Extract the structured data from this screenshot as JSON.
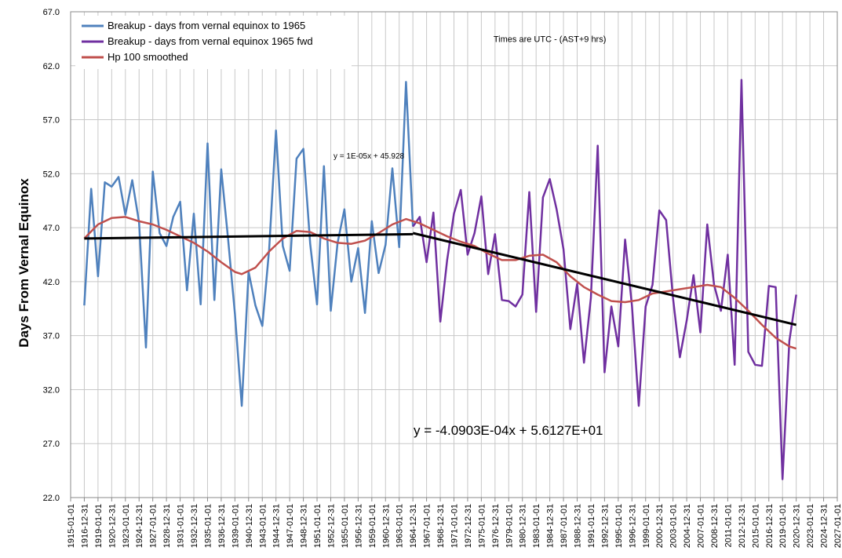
{
  "chart_data": {
    "type": "line",
    "y_label": "Days From Vernal Equinox",
    "annotations": [
      {
        "text": "Times are UTC - (AST+9 hrs)",
        "x": 1985,
        "y": 64.2
      }
    ],
    "ylim": [
      22,
      67
    ],
    "yticks": [
      {
        "value": 22,
        "label": "22.0"
      },
      {
        "value": 27,
        "label": "27.0"
      },
      {
        "value": 32,
        "label": "32.0"
      },
      {
        "value": 37,
        "label": "37.0"
      },
      {
        "value": 42,
        "label": "42.0"
      },
      {
        "value": 47,
        "label": "47.0"
      },
      {
        "value": 52,
        "label": "52.0"
      },
      {
        "value": 57,
        "label": "57.0"
      },
      {
        "value": 62,
        "label": "62.0"
      },
      {
        "value": 67,
        "label": "67.0"
      }
    ],
    "xlim": [
      1915,
      2027
    ],
    "xticks": [
      {
        "value": 1915,
        "label": "1915-01-01"
      },
      {
        "value": 1917,
        "label": "1916-12-31"
      },
      {
        "value": 1919,
        "label": "1919-01-01"
      },
      {
        "value": 1921,
        "label": "1920-12-31"
      },
      {
        "value": 1923,
        "label": "1923-01-01"
      },
      {
        "value": 1925,
        "label": "1924-12-31"
      },
      {
        "value": 1927,
        "label": "1927-01-01"
      },
      {
        "value": 1929,
        "label": "1928-12-31"
      },
      {
        "value": 1931,
        "label": "1931-01-01"
      },
      {
        "value": 1933,
        "label": "1932-12-31"
      },
      {
        "value": 1935,
        "label": "1935-01-01"
      },
      {
        "value": 1937,
        "label": "1936-12-31"
      },
      {
        "value": 1939,
        "label": "1939-01-01"
      },
      {
        "value": 1941,
        "label": "1940-12-31"
      },
      {
        "value": 1943,
        "label": "1943-01-01"
      },
      {
        "value": 1945,
        "label": "1944-12-31"
      },
      {
        "value": 1947,
        "label": "1947-01-01"
      },
      {
        "value": 1949,
        "label": "1948-12-31"
      },
      {
        "value": 1951,
        "label": "1951-01-01"
      },
      {
        "value": 1953,
        "label": "1952-12-31"
      },
      {
        "value": 1955,
        "label": "1955-01-01"
      },
      {
        "value": 1957,
        "label": "1956-12-31"
      },
      {
        "value": 1959,
        "label": "1959-01-01"
      },
      {
        "value": 1961,
        "label": "1960-12-31"
      },
      {
        "value": 1963,
        "label": "1963-01-01"
      },
      {
        "value": 1965,
        "label": "1964-12-31"
      },
      {
        "value": 1967,
        "label": "1967-01-01"
      },
      {
        "value": 1969,
        "label": "1968-12-31"
      },
      {
        "value": 1971,
        "label": "1971-01-01"
      },
      {
        "value": 1973,
        "label": "1972-12-31"
      },
      {
        "value": 1975,
        "label": "1975-01-01"
      },
      {
        "value": 1977,
        "label": "1976-12-31"
      },
      {
        "value": 1979,
        "label": "1979-01-01"
      },
      {
        "value": 1981,
        "label": "1980-12-31"
      },
      {
        "value": 1983,
        "label": "1983-01-01"
      },
      {
        "value": 1985,
        "label": "1984-12-31"
      },
      {
        "value": 1987,
        "label": "1987-01-01"
      },
      {
        "value": 1989,
        "label": "1988-12-31"
      },
      {
        "value": 1991,
        "label": "1991-01-01"
      },
      {
        "value": 1993,
        "label": "1992-12-31"
      },
      {
        "value": 1995,
        "label": "1995-01-01"
      },
      {
        "value": 1997,
        "label": "1996-12-31"
      },
      {
        "value": 1999,
        "label": "1999-01-01"
      },
      {
        "value": 2001,
        "label": "2000-12-31"
      },
      {
        "value": 2003,
        "label": "2003-01-01"
      },
      {
        "value": 2005,
        "label": "2004-12-31"
      },
      {
        "value": 2007,
        "label": "2007-01-01"
      },
      {
        "value": 2009,
        "label": "2008-12-31"
      },
      {
        "value": 2011,
        "label": "2011-01-01"
      },
      {
        "value": 2013,
        "label": "2012-12-31"
      },
      {
        "value": 2015,
        "label": "2015-01-01"
      },
      {
        "value": 2017,
        "label": "2016-12-31"
      },
      {
        "value": 2019,
        "label": "2019-01-01"
      },
      {
        "value": 2021,
        "label": "2020-12-31"
      },
      {
        "value": 2023,
        "label": "2023-01-01"
      },
      {
        "value": 2025,
        "label": "2024-12-31"
      },
      {
        "value": 2027,
        "label": "2027-01-01"
      }
    ],
    "grid": true,
    "legend": "top-left",
    "series": [
      {
        "name": "Breakup - days from vernal equinox to 1965",
        "color": "#4f81bd",
        "x": [
          1917,
          1918,
          1919,
          1920,
          1921,
          1922,
          1923,
          1924,
          1925,
          1926,
          1927,
          1928,
          1929,
          1930,
          1931,
          1932,
          1933,
          1934,
          1935,
          1936,
          1937,
          1938,
          1939,
          1940,
          1941,
          1942,
          1943,
          1944,
          1945,
          1946,
          1947,
          1948,
          1949,
          1950,
          1951,
          1952,
          1953,
          1954,
          1955,
          1956,
          1957,
          1958,
          1959,
          1960,
          1961,
          1962,
          1963,
          1964,
          1965
        ],
        "values": [
          39.8,
          50.6,
          42.5,
          51.2,
          50.8,
          51.7,
          48.2,
          51.4,
          47.5,
          35.9,
          52.2,
          46.5,
          45.3,
          48.0,
          49.4,
          41.2,
          48.3,
          39.9,
          54.8,
          40.3,
          52.4,
          46.0,
          39.0,
          30.5,
          42.9,
          39.8,
          37.9,
          45.0,
          56.0,
          45.3,
          43.0,
          53.4,
          54.3,
          45.5,
          39.9,
          52.7,
          39.3,
          45.6,
          48.7,
          42.0,
          45.1,
          39.1,
          47.6,
          42.8,
          45.4,
          52.5,
          45.2,
          60.5,
          47.1
        ]
      },
      {
        "name": "Breakup - days from vernal equinox 1965 fwd",
        "color": "#7030a0",
        "x": [
          1965,
          1966,
          1967,
          1968,
          1969,
          1970,
          1971,
          1972,
          1973,
          1974,
          1975,
          1976,
          1977,
          1978,
          1979,
          1980,
          1981,
          1982,
          1983,
          1984,
          1985,
          1986,
          1987,
          1988,
          1989,
          1990,
          1991,
          1992,
          1993,
          1994,
          1995,
          1996,
          1997,
          1998,
          1999,
          2000,
          2001,
          2002,
          2003,
          2004,
          2005,
          2006,
          2007,
          2008,
          2009,
          2010,
          2011,
          2012,
          2013,
          2014,
          2015,
          2016,
          2017,
          2018,
          2019,
          2020,
          2021
        ],
        "values": [
          47.1,
          48.0,
          43.8,
          48.4,
          38.3,
          44.0,
          48.3,
          50.5,
          44.5,
          46.5,
          49.9,
          42.7,
          46.4,
          40.3,
          40.2,
          39.7,
          40.8,
          50.3,
          39.2,
          49.8,
          51.5,
          48.7,
          45.0,
          37.6,
          41.8,
          34.5,
          40.5,
          54.6,
          33.6,
          39.7,
          36.0,
          45.9,
          39.8,
          30.5,
          39.7,
          41.7,
          48.6,
          47.7,
          40.5,
          35.0,
          38.4,
          42.6,
          37.3,
          47.3,
          41.7,
          39.3,
          44.5,
          34.3,
          60.7,
          35.5,
          34.3,
          34.2,
          41.6,
          41.5,
          23.7,
          36.5,
          40.8
        ]
      },
      {
        "name": "Hp 100 smoothed",
        "color": "#c0504d",
        "x": [
          1917,
          1919,
          1921,
          1923,
          1925,
          1927,
          1929,
          1931,
          1933,
          1935,
          1937,
          1939,
          1940,
          1942,
          1944,
          1946,
          1948,
          1950,
          1952,
          1954,
          1956,
          1958,
          1960,
          1962,
          1964,
          1966,
          1968,
          1970,
          1972,
          1974,
          1976,
          1978,
          1980,
          1982,
          1984,
          1986,
          1988,
          1990,
          1992,
          1994,
          1996,
          1998,
          2000,
          2002,
          2004,
          2006,
          2008,
          2010,
          2012,
          2014,
          2016,
          2018,
          2020,
          2021
        ],
        "values": [
          46.0,
          47.3,
          47.9,
          48.0,
          47.6,
          47.3,
          46.8,
          46.2,
          45.6,
          44.8,
          43.8,
          42.9,
          42.7,
          43.3,
          44.8,
          46.0,
          46.7,
          46.6,
          46.0,
          45.6,
          45.5,
          45.8,
          46.5,
          47.3,
          47.8,
          47.4,
          46.8,
          46.2,
          45.7,
          45.3,
          44.6,
          44.0,
          44.0,
          44.4,
          44.5,
          43.8,
          42.5,
          41.5,
          40.8,
          40.2,
          40.1,
          40.3,
          40.9,
          41.1,
          41.3,
          41.5,
          41.7,
          41.5,
          40.5,
          39.3,
          38.0,
          36.8,
          36.0,
          35.8
        ]
      }
    ],
    "trendlines": [
      {
        "label": "y = 1E-05x + 45.928",
        "color": "#000000",
        "x": [
          1917,
          1965
        ],
        "values": [
          46.0,
          46.4
        ]
      },
      {
        "label": "y = -4.0903E-04x + 5.6127E+01",
        "color": "#000000",
        "x": [
          1965,
          2021
        ],
        "values": [
          46.5,
          38.0
        ]
      }
    ]
  }
}
